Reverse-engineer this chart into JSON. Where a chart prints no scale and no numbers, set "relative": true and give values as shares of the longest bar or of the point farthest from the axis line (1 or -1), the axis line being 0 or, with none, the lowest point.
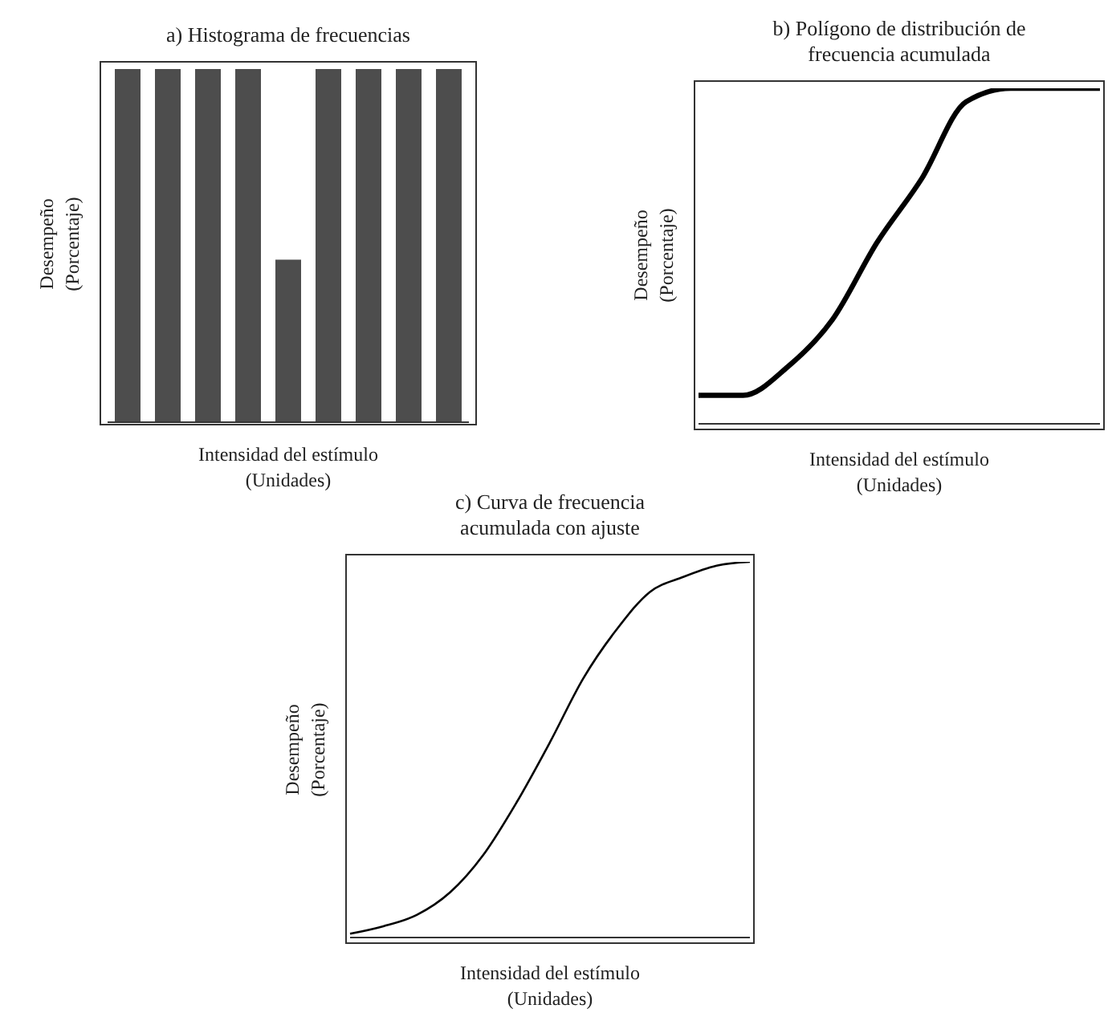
{
  "chart_data": [
    {
      "type": "bar",
      "title": "a)  Histograma de frecuencias",
      "xlabel": "Intensidad del estímulo (Unidades)",
      "ylabel": "Desempeño (Porcentaje)",
      "relative": true,
      "categories": [
        null,
        null,
        null,
        null,
        null,
        null,
        null,
        null,
        null
      ],
      "values": [
        1,
        1,
        1,
        1,
        0.46,
        1,
        1,
        1,
        1
      ],
      "color": "#4d4d4d"
    },
    {
      "type": "line",
      "title": "b)  Polígono de distribución de frecuencia acumulada",
      "xlabel": "Intensidad del estímulo (Unidades)",
      "ylabel": "Desempeño (Porcentaje)",
      "relative": true,
      "categories": [
        null,
        null,
        null,
        null,
        null,
        null,
        null,
        null,
        null,
        null
      ],
      "values": [
        0.085,
        0.085,
        0.17,
        0.31,
        0.54,
        0.73,
        0.96,
        1,
        1,
        1
      ],
      "color": "#000000"
    },
    {
      "type": "line",
      "title": "c)  Curva de frecuencia acumulada con ajuste",
      "xlabel": "Intensidad del estímulo (Unidades)",
      "ylabel": "Desempeño (Porcentaje)",
      "relative": true,
      "categories": [
        null,
        null,
        null,
        null,
        null,
        null,
        null,
        null,
        null,
        null,
        null,
        null,
        null
      ],
      "values": [
        0.01,
        0.03,
        0.06,
        0.12,
        0.22,
        0.36,
        0.52,
        0.69,
        0.82,
        0.92,
        0.96,
        0.99,
        1
      ],
      "color": "#000000"
    }
  ]
}
